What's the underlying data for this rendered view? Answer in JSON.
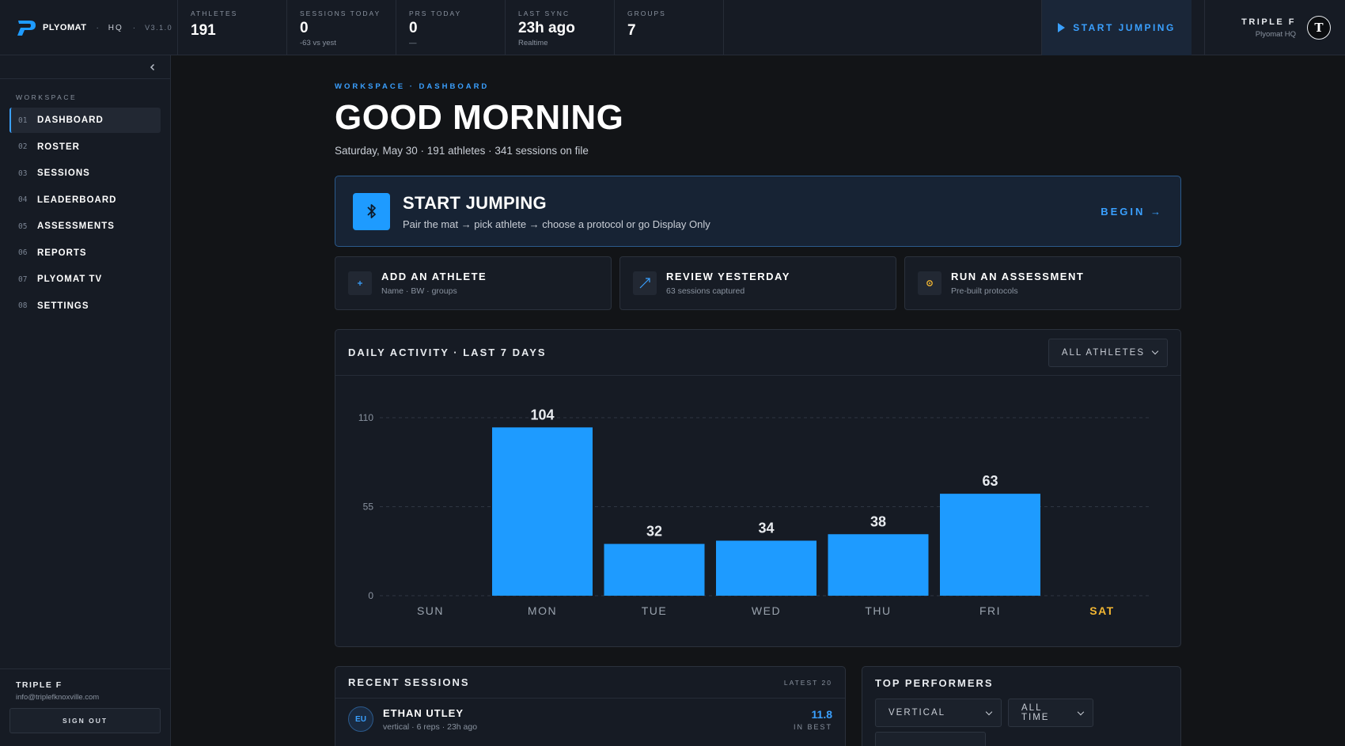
{
  "brand": {
    "name": "PLYOMAT",
    "hq": "HQ",
    "version": "V3.1.0",
    "logo_color": "#1e9bff"
  },
  "stats": [
    {
      "label": "ATHLETES",
      "value": "191",
      "sub": ""
    },
    {
      "label": "SESSIONS TODAY",
      "value": "0",
      "sub": "-63 vs yest"
    },
    {
      "label": "PRS TODAY",
      "value": "0",
      "sub": "—"
    },
    {
      "label": "LAST SYNC",
      "value": "23h ago",
      "sub": "Realtime"
    },
    {
      "label": "GROUPS",
      "value": "7",
      "sub": ""
    }
  ],
  "top_actions": {
    "start_label": "START JUMPING"
  },
  "user": {
    "name": "TRIPLE F",
    "org": "Plyomat HQ",
    "avatar_letter": "T",
    "email": "info@triplefknoxville.com"
  },
  "sidebar": {
    "section_label": "WORKSPACE",
    "items": [
      {
        "num": "01",
        "label": "DASHBOARD",
        "active": true
      },
      {
        "num": "02",
        "label": "ROSTER"
      },
      {
        "num": "03",
        "label": "SESSIONS"
      },
      {
        "num": "04",
        "label": "LEADERBOARD"
      },
      {
        "num": "05",
        "label": "ASSESSMENTS"
      },
      {
        "num": "06",
        "label": "REPORTS"
      },
      {
        "num": "07",
        "label": "PLYOMAT TV"
      },
      {
        "num": "08",
        "label": "SETTINGS"
      }
    ],
    "signout_label": "SIGN OUT"
  },
  "main": {
    "breadcrumb": "WORKSPACE · DASHBOARD",
    "title": "GOOD MORNING",
    "subtitle": "Saturday, May 30 · 191 athletes · 341 sessions on file",
    "hero": {
      "title": "START JUMPING",
      "desc": "Pair the mat → pick athlete → choose a protocol or go Display Only",
      "cta": "BEGIN →"
    },
    "cards": [
      {
        "title": "ADD AN ATHLETE",
        "sub": "Name · BW · groups",
        "icon": "plus-icon"
      },
      {
        "title": "REVIEW YESTERDAY",
        "sub": "63 sessions captured",
        "icon": "trend-arrow-icon"
      },
      {
        "title": "RUN AN ASSESSMENT",
        "sub": "Pre-built protocols",
        "icon": "gear-icon"
      }
    ],
    "activity": {
      "title": "DAILY ACTIVITY · LAST 7 DAYS",
      "filter": "ALL ATHLETES"
    },
    "recent": {
      "title": "RECENT SESSIONS",
      "tag": "LATEST 20",
      "rows": [
        {
          "initials": "EU",
          "name": "ETHAN UTLEY",
          "meta": "vertical · 6 reps · 23h ago",
          "value": "11.8",
          "unit": "IN BEST"
        }
      ]
    },
    "top_performers": {
      "title": "TOP PERFORMERS",
      "metric": "VERTICAL",
      "range": "ALL TIME"
    }
  },
  "chart_data": {
    "type": "bar",
    "categories": [
      "SUN",
      "MON",
      "TUE",
      "WED",
      "THU",
      "FRI",
      "SAT"
    ],
    "values": [
      0,
      104,
      32,
      34,
      38,
      63,
      0
    ],
    "show_value_labels": [
      false,
      true,
      true,
      true,
      true,
      true,
      false
    ],
    "highlight_category": "SAT",
    "yticks": [
      0,
      55,
      110
    ],
    "ylim": [
      0,
      110
    ],
    "bar_color": "#1e9bff",
    "highlight_color": "#f2b632",
    "grid": true
  }
}
